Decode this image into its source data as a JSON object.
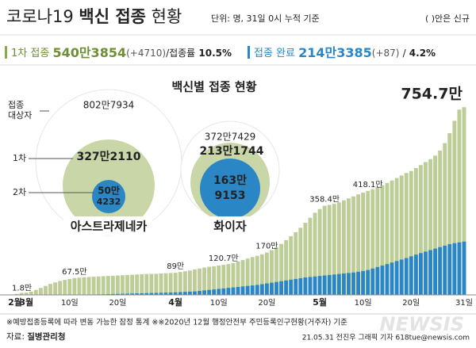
{
  "header": {
    "title": [
      "코로나19",
      "백신 접종",
      "현황"
    ],
    "subtitle": "단위: 명, 31일 0시 누적 기준",
    "note": "( )안은 신규"
  },
  "stats": {
    "first_label": "1차 접종",
    "first_value": "540만3854",
    "first_new": "(+4710)",
    "first_rate_label": "/접종률",
    "first_rate": "10.5%",
    "done_label": "접종 완료",
    "done_value": "214만3385",
    "done_new": "(+87)",
    "done_rate_label": "/",
    "done_rate": "4.2%"
  },
  "vaccines": {
    "title": "백신별 접종 현황",
    "row_labels": [
      "접종",
      "대상자",
      "1차",
      "2차"
    ],
    "items": [
      {
        "name": "아스트라제네카",
        "target": "802만7934",
        "first": "327만2110",
        "second": [
          "50만",
          "4232"
        ]
      },
      {
        "name": "화이자",
        "target": "372만7429",
        "first": "213만1744",
        "second": [
          "163만",
          "9153"
        ]
      }
    ]
  },
  "footer": {
    "notes": "※예방접종등록에 따라 변동 가능한 잠정 통계  ※※2020년 12월 행정안전부 주민등록인구현황(거주자) 기준",
    "source_label": "자료:",
    "source": "질병관리청",
    "credit": "21.05.31 전진우 그래픽 기자 618tue@newsis.com",
    "watermark": "NEWSIS"
  },
  "chart_data": {
    "type": "bar",
    "categories": [
      "2월",
      null,
      null,
      "3월",
      null,
      null,
      null,
      null,
      null,
      null,
      null,
      null,
      "10일",
      null,
      null,
      null,
      null,
      null,
      null,
      null,
      null,
      null,
      "20일",
      null,
      null,
      null,
      null,
      null,
      null,
      null,
      null,
      null,
      null,
      null,
      "4월",
      null,
      null,
      null,
      null,
      null,
      null,
      null,
      null,
      "10일",
      null,
      null,
      null,
      null,
      null,
      null,
      null,
      null,
      null,
      "20일",
      null,
      null,
      null,
      null,
      null,
      null,
      null,
      null,
      null,
      null,
      "5월",
      null,
      null,
      null,
      null,
      null,
      null,
      null,
      null,
      "10일",
      null,
      null,
      null,
      null,
      null,
      null,
      null,
      null,
      null,
      "20일",
      null,
      null,
      null,
      null,
      null,
      null,
      null,
      null,
      null,
      null,
      "31일"
    ],
    "series": [
      {
        "color": "#bccd97",
        "values": [
          1.8,
          4,
          8,
          9,
          13,
          20,
          28,
          36,
          44,
          50,
          56,
          60,
          64,
          67.5,
          69,
          71,
          72,
          73,
          74,
          75,
          76,
          77,
          78,
          79,
          80,
          81,
          82,
          83,
          84,
          84.5,
          85,
          86,
          87,
          88,
          89,
          92,
          95,
          98,
          102,
          106,
          110,
          113,
          115,
          118,
          120.7,
          124,
          128,
          134,
          140,
          146,
          152,
          157,
          163,
          170,
          180,
          192,
          205,
          220,
          236,
          252,
          270,
          290,
          310,
          330,
          345,
          358.4,
          362,
          366,
          372,
          380,
          388,
          396,
          404,
          411,
          418.1,
          425,
          433,
          441,
          450,
          460,
          470,
          480,
          490,
          498,
          510,
          522,
          534,
          546,
          560,
          580,
          610,
          650,
          700,
          745,
          754.7
        ],
        "value_labels": [
          "1.8만",
          null,
          null,
          null,
          null,
          null,
          null,
          null,
          null,
          null,
          null,
          null,
          null,
          "67.5만",
          null,
          null,
          null,
          null,
          null,
          null,
          null,
          null,
          null,
          null,
          null,
          null,
          null,
          null,
          null,
          null,
          null,
          null,
          null,
          null,
          "89만",
          null,
          null,
          null,
          null,
          null,
          null,
          null,
          null,
          null,
          "120.7만",
          null,
          null,
          null,
          null,
          null,
          null,
          null,
          null,
          "170만",
          null,
          null,
          null,
          null,
          null,
          null,
          null,
          null,
          null,
          null,
          null,
          "358.4만",
          null,
          null,
          null,
          null,
          null,
          null,
          null,
          null,
          "418.1만",
          null,
          null,
          null,
          null,
          null,
          null,
          null,
          null,
          null,
          null,
          null,
          null,
          null,
          null,
          null,
          null,
          null,
          null,
          null,
          "754.7만"
        ]
      },
      {
        "color": "#2b86c5",
        "values": [
          0,
          0,
          0,
          0,
          0,
          0,
          0,
          0,
          0,
          0,
          0,
          0.1,
          0.2,
          0.3,
          0.5,
          0.7,
          1,
          1.5,
          2,
          2.5,
          3,
          3.5,
          4,
          4.5,
          5,
          5.5,
          6,
          6.5,
          7,
          7.5,
          8,
          8.5,
          9,
          9.5,
          10,
          11,
          12,
          13,
          14,
          16,
          18,
          20,
          22,
          24,
          26,
          28,
          30,
          32,
          34,
          36,
          38,
          40,
          43,
          46,
          49,
          52,
          55,
          58,
          61,
          64,
          67,
          70,
          72,
          74,
          76,
          78,
          80,
          82,
          84,
          86,
          88,
          90,
          93,
          96,
          100,
          106,
          112,
          118,
          124,
          130,
          136,
          142,
          148,
          155,
          162,
          168,
          174,
          180,
          186,
          192,
          198,
          204,
          208,
          211,
          214.3
        ]
      }
    ],
    "ylim": [
      0,
      800
    ]
  }
}
